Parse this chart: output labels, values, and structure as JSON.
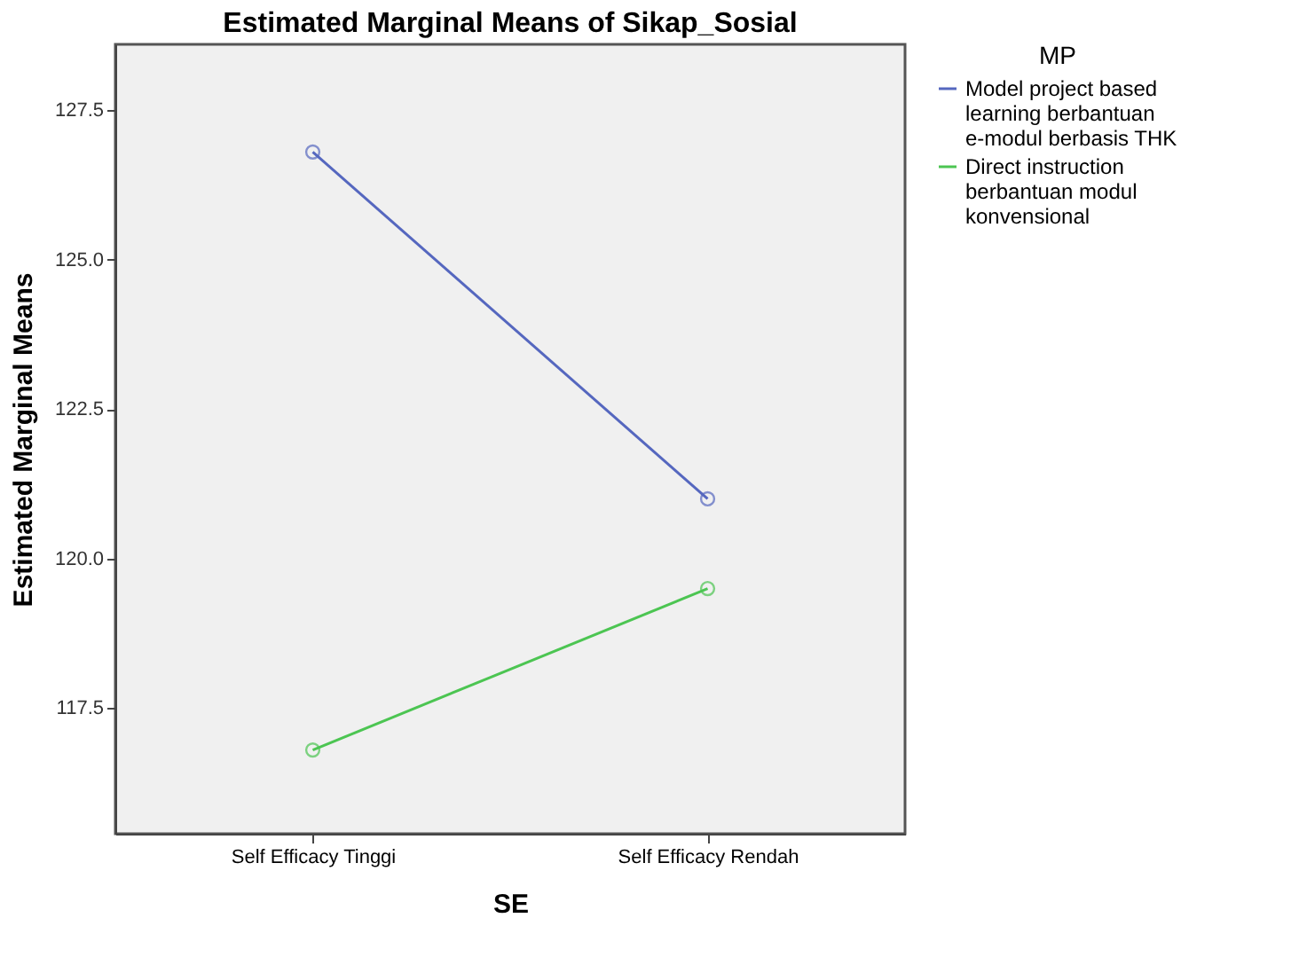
{
  "chart_data": {
    "type": "line",
    "title": "Estimated Marginal Means of Sikap_Sosial",
    "xlabel": "SE",
    "ylabel": "Estimated Marginal Means",
    "legend_title": "MP",
    "categories": [
      "Self Efficacy Tinggi",
      "Self Efficacy Rendah"
    ],
    "series": [
      {
        "name": "Model project based learning berbantuan e-modul berbasis THK",
        "color": "#5567bf",
        "values": [
          126.8,
          121.0
        ]
      },
      {
        "name": "Direct instruction berbantuan modul konvensional",
        "color": "#4cc552",
        "values": [
          116.8,
          119.5
        ]
      }
    ],
    "ylim": [
      115.4,
      128.6
    ],
    "yticks": [
      {
        "value": 117.5,
        "label": "117.5"
      },
      {
        "value": 120,
        "label": "120.0"
      },
      {
        "value": 122.5,
        "label": "122.5"
      },
      {
        "value": 125,
        "label": "125.0"
      },
      {
        "value": 127.5,
        "label": "127.5"
      }
    ],
    "grid": false,
    "legend": "right",
    "marker": "circle",
    "line_style": "solid"
  }
}
